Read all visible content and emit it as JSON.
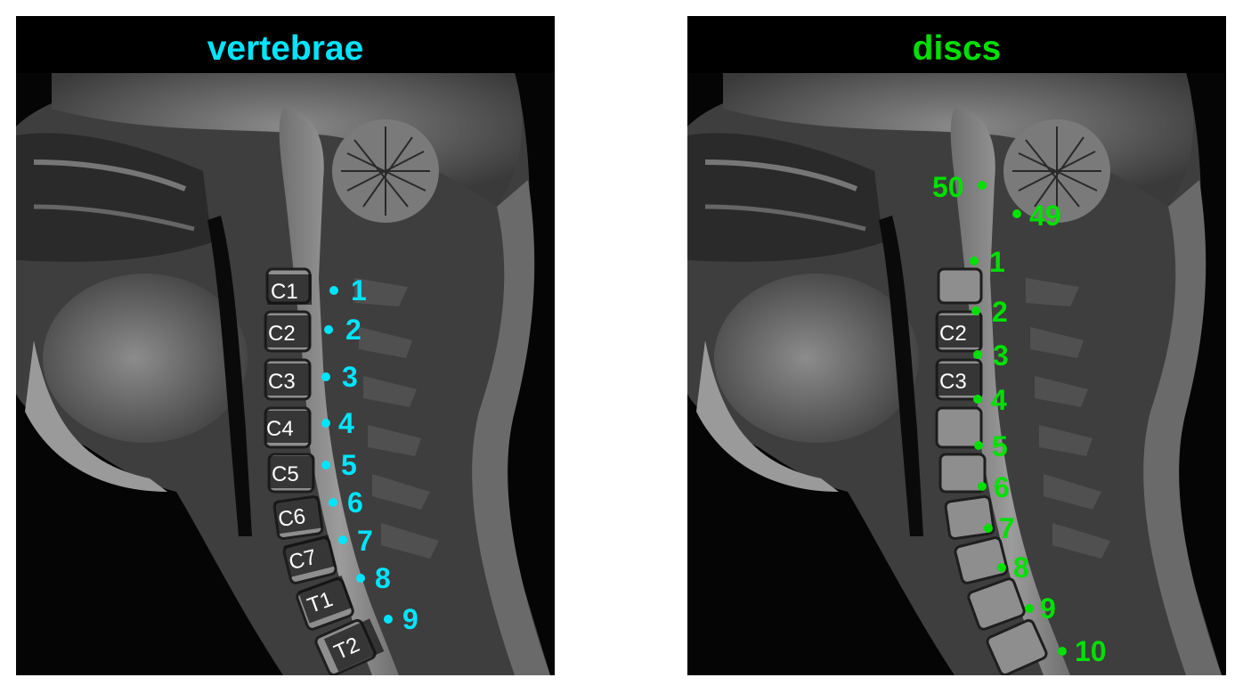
{
  "colors": {
    "vertebrae": "#00e5ff",
    "discs": "#00e000",
    "label_text": "#ffffff",
    "label_bg": "#111111"
  },
  "panels": [
    {
      "title": "vertebrae",
      "color": "#00e5ff",
      "anatomy_labels": [
        "C1",
        "C2",
        "C3",
        "C4",
        "C5",
        "C6",
        "C7",
        "T1",
        "T2"
      ],
      "markers": [
        "1",
        "2",
        "3",
        "4",
        "5",
        "6",
        "7",
        "8",
        "9"
      ]
    },
    {
      "title": "discs",
      "color": "#00e000",
      "anatomy_labels": [
        "C2",
        "C3"
      ],
      "markers": [
        "50",
        "49",
        "1",
        "2",
        "3",
        "4",
        "5",
        "6",
        "7",
        "8",
        "9",
        "10"
      ]
    }
  ]
}
